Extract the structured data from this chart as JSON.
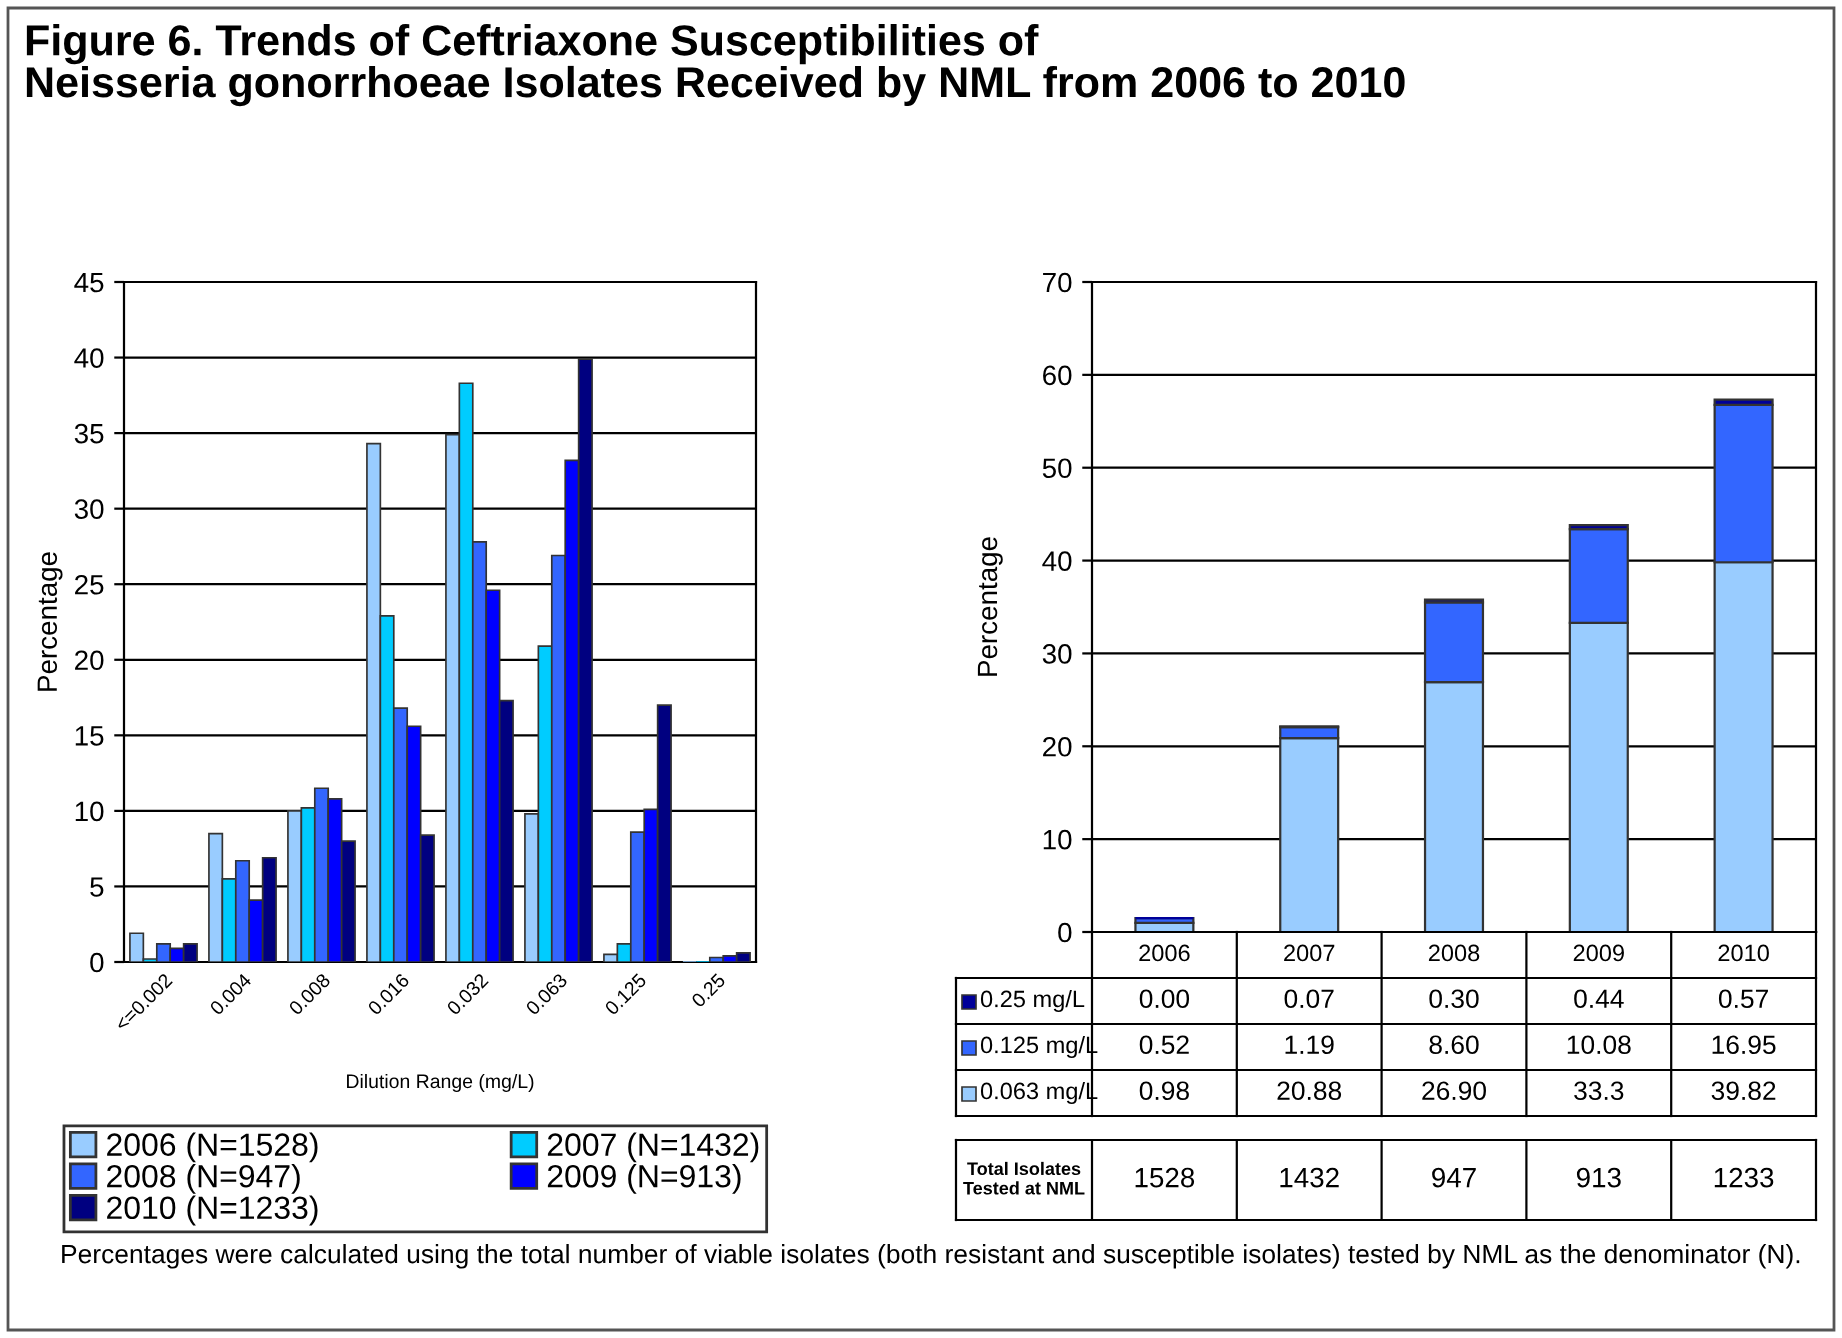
{
  "chart_data": [
    {
      "type": "bar",
      "title": "Figure 6. Trends of Ceftriaxone Susceptibilities of\nNeisseria gonorrhoeae Isolates Received by NML from 2006 to 2010",
      "xlabel": "Dilution Range (mg/L)",
      "ylabel": "Percentage",
      "categories": [
        "<=0.002",
        "0.004",
        "0.008",
        "0.016",
        "0.032",
        "0.063",
        "0.125",
        "0.25"
      ],
      "series": [
        {
          "name": "2006 (N=1528)",
          "color": "#99ccff",
          "values": [
            1.9,
            8.5,
            10.0,
            34.3,
            34.9,
            9.8,
            0.5,
            0.0
          ]
        },
        {
          "name": "2007 (N=1432)",
          "color": "#00ccff",
          "values": [
            0.2,
            5.5,
            10.2,
            22.9,
            38.3,
            20.9,
            1.2,
            null
          ]
        },
        {
          "name": "2008 (N=947)",
          "color": "#3366ff",
          "values": [
            1.2,
            6.7,
            11.5,
            16.8,
            27.8,
            26.9,
            8.6,
            0.3
          ]
        },
        {
          "name": "2009 (N=913)",
          "color": "#0000ff",
          "values": [
            0.9,
            4.1,
            10.8,
            15.6,
            24.6,
            33.2,
            10.1,
            0.4
          ]
        },
        {
          "name": "2010 (N=1233)",
          "color": "#000080",
          "values": [
            1.2,
            6.9,
            8.0,
            8.4,
            17.3,
            39.9,
            17.0,
            0.6
          ]
        }
      ],
      "ylim": [
        0,
        45
      ],
      "yticks": [
        0,
        5,
        10,
        15,
        20,
        25,
        30,
        35,
        40,
        45
      ],
      "grid": "y",
      "legend": "bottom",
      "annotations": [
        "Percentages were calculated using the total number of viable isolates (both resistant and susceptible isolates) tested by NML as the denominator (N)."
      ]
    },
    {
      "type": "bar",
      "stacked": true,
      "ylabel": "Percentage",
      "categories": [
        "2006",
        "2007",
        "2008",
        "2009",
        "2010"
      ],
      "series": [
        {
          "name": "0.063 mg/L",
          "color": "#99ccff",
          "values": [
            0.98,
            20.88,
            26.9,
            33.3,
            39.82
          ],
          "value_labels": [
            "0.98",
            "20.88",
            "26.90",
            "33.3",
            "39.82"
          ]
        },
        {
          "name": "0.125 mg/L",
          "color": "#3366ff",
          "values": [
            0.52,
            1.19,
            8.6,
            10.08,
            16.95
          ],
          "value_labels": [
            "0.52",
            "1.19",
            "8.60",
            "10.08",
            "16.95"
          ]
        },
        {
          "name": "0.25 mg/L",
          "color": "#000099",
          "values": [
            0.0,
            0.07,
            0.3,
            0.44,
            0.57
          ],
          "value_labels": [
            "0.00",
            "0.07",
            "0.30",
            "0.44",
            "0.57"
          ]
        }
      ],
      "ylim": [
        0,
        70
      ],
      "yticks": [
        0,
        10,
        20,
        30,
        40,
        50,
        60,
        70
      ],
      "grid": "y",
      "legend": "bottom"
    },
    {
      "type": "other",
      "title": "Total Isolates\nTested at NML",
      "values": [
        1528,
        1432,
        947,
        913,
        1233
      ],
      "data_labels": true
    }
  ]
}
